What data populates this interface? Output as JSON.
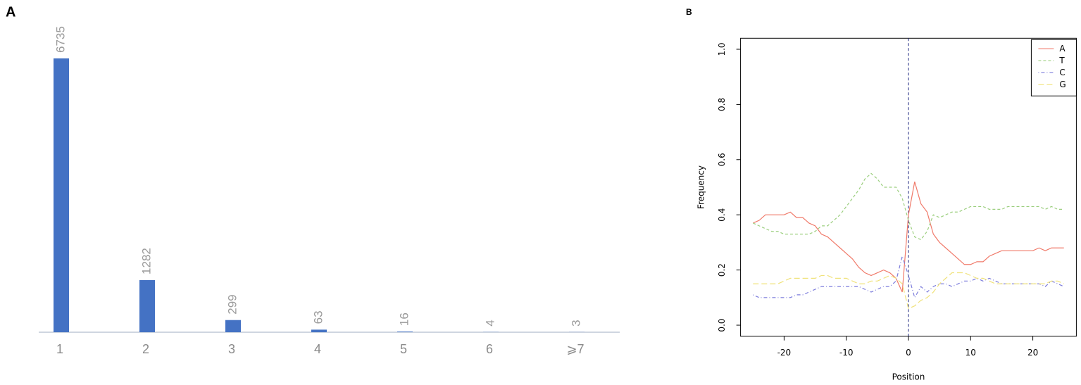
{
  "chart_data": [
    {
      "type": "bar",
      "panel": "A",
      "categories": [
        "1",
        "2",
        "3",
        "4",
        "5",
        "6",
        "⩾7"
      ],
      "values": [
        6735,
        1282,
        299,
        63,
        16,
        4,
        3
      ],
      "color": "#4472c4"
    },
    {
      "type": "line",
      "panel": "B",
      "x_label": "Position",
      "y_label": "Frequency",
      "x": [
        -25,
        -24,
        -23,
        -22,
        -21,
        -20,
        -19,
        -18,
        -17,
        -16,
        -15,
        -14,
        -13,
        -12,
        -11,
        -10,
        -9,
        -8,
        -7,
        -6,
        -5,
        -4,
        -3,
        -2,
        -1,
        0,
        1,
        2,
        3,
        4,
        5,
        6,
        7,
        8,
        9,
        10,
        11,
        12,
        13,
        14,
        15,
        16,
        17,
        18,
        19,
        20,
        21,
        22,
        23,
        24,
        25
      ],
      "series": [
        {
          "name": "A",
          "color": "#f07a6a",
          "dash": "solid",
          "values": [
            0.37,
            0.38,
            0.4,
            0.4,
            0.4,
            0.4,
            0.41,
            0.39,
            0.39,
            0.37,
            0.36,
            0.33,
            0.32,
            0.3,
            0.28,
            0.26,
            0.24,
            0.21,
            0.19,
            0.18,
            0.19,
            0.2,
            0.19,
            0.17,
            0.12,
            0.4,
            0.52,
            0.44,
            0.41,
            0.33,
            0.3,
            0.28,
            0.26,
            0.24,
            0.22,
            0.22,
            0.23,
            0.23,
            0.25,
            0.26,
            0.27,
            0.27,
            0.27,
            0.27,
            0.27,
            0.27,
            0.28,
            0.27,
            0.28,
            0.28,
            0.28
          ]
        },
        {
          "name": "T",
          "color": "#9ccf7f",
          "dash": "dashed",
          "values": [
            0.37,
            0.36,
            0.35,
            0.34,
            0.34,
            0.33,
            0.33,
            0.33,
            0.33,
            0.33,
            0.34,
            0.36,
            0.36,
            0.38,
            0.4,
            0.43,
            0.46,
            0.49,
            0.53,
            0.55,
            0.53,
            0.5,
            0.5,
            0.5,
            0.46,
            0.38,
            0.32,
            0.31,
            0.34,
            0.4,
            0.39,
            0.4,
            0.41,
            0.41,
            0.42,
            0.43,
            0.43,
            0.43,
            0.42,
            0.42,
            0.42,
            0.43,
            0.43,
            0.43,
            0.43,
            0.43,
            0.43,
            0.42,
            0.43,
            0.42,
            0.42
          ]
        },
        {
          "name": "C",
          "color": "#7c7cdc",
          "dash": "dotdash",
          "values": [
            0.11,
            0.1,
            0.1,
            0.1,
            0.1,
            0.1,
            0.1,
            0.11,
            0.11,
            0.12,
            0.13,
            0.14,
            0.14,
            0.14,
            0.14,
            0.14,
            0.14,
            0.14,
            0.13,
            0.12,
            0.13,
            0.14,
            0.14,
            0.16,
            0.25,
            0.18,
            0.1,
            0.14,
            0.12,
            0.14,
            0.15,
            0.15,
            0.14,
            0.15,
            0.16,
            0.16,
            0.17,
            0.16,
            0.17,
            0.16,
            0.15,
            0.15,
            0.15,
            0.15,
            0.15,
            0.15,
            0.15,
            0.14,
            0.16,
            0.15,
            0.14
          ]
        },
        {
          "name": "G",
          "color": "#f0e27a",
          "dash": "longdash",
          "values": [
            0.15,
            0.15,
            0.15,
            0.15,
            0.15,
            0.16,
            0.17,
            0.17,
            0.17,
            0.17,
            0.17,
            0.18,
            0.18,
            0.17,
            0.17,
            0.17,
            0.16,
            0.15,
            0.15,
            0.16,
            0.16,
            0.17,
            0.18,
            0.17,
            0.15,
            0.06,
            0.07,
            0.09,
            0.1,
            0.12,
            0.15,
            0.17,
            0.19,
            0.19,
            0.19,
            0.18,
            0.17,
            0.17,
            0.16,
            0.15,
            0.15,
            0.15,
            0.15,
            0.15,
            0.15,
            0.15,
            0.15,
            0.15,
            0.16,
            0.16,
            0.15
          ]
        }
      ],
      "xlim": [
        -27,
        27
      ],
      "xticks": [
        -20,
        -10,
        0,
        10,
        20
      ],
      "ylim": [
        -0.04,
        1.04
      ],
      "yticks": [
        {
          "value": 0,
          "label": "0.0"
        },
        0.2,
        0.4,
        0.6,
        0.8,
        {
          "value": 1,
          "label": "1.0"
        }
      ],
      "vline": 0,
      "vline_color": "#1a237e",
      "legend": "top-right"
    }
  ]
}
